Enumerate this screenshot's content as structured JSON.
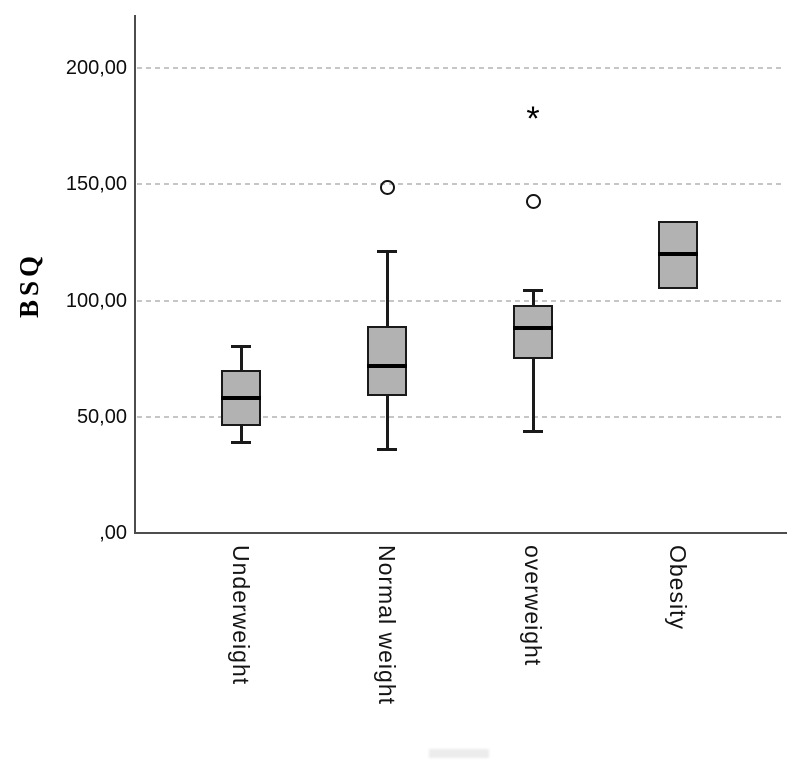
{
  "chart_data": {
    "type": "boxplot",
    "title": "",
    "ylabel": "BSQ",
    "xlabel": "",
    "ylim": [
      0,
      223
    ],
    "grid": "horizontal-dashed-light-gray",
    "legend": "none",
    "yticks": [
      0,
      50,
      100,
      150,
      200
    ],
    "ytick_labels": [
      ",00",
      "50,00",
      "100,00",
      "150,00",
      "200,00"
    ],
    "categories": [
      "Underweight",
      "Normal weight",
      "overweight",
      "Obesity"
    ],
    "series": [
      {
        "category": "Underweight",
        "whisker_low": 39,
        "q1": 46,
        "median": 58,
        "q3": 70,
        "whisker_high": 80,
        "outliers": [],
        "extremes": []
      },
      {
        "category": "Normal weight",
        "whisker_low": 36,
        "q1": 59,
        "median": 72,
        "q3": 89,
        "whisker_high": 121,
        "outliers": [
          149
        ],
        "extremes": []
      },
      {
        "category": "overweight",
        "whisker_low": 44,
        "q1": 75,
        "median": 88,
        "q3": 98,
        "whisker_high": 104,
        "outliers": [
          143
        ],
        "extremes": [
          180
        ]
      },
      {
        "category": "Obesity",
        "whisker_low": 105,
        "q1": 105,
        "median": 120,
        "q3": 134,
        "whisker_high": 134,
        "outliers": [],
        "extremes": []
      }
    ],
    "markers": {
      "outlier": "open-circle",
      "extreme": "asterisk",
      "extreme_glyph": "*"
    },
    "colors": {
      "box_fill": "#b2b2b2",
      "box_border": "#1a1a1a",
      "median": "#000000",
      "whisker": "#1a1a1a",
      "gridline": "#c6c6c6",
      "axis": "#4d4d4d",
      "text": "#000000"
    },
    "notes": {
      "bottom_edge_text": "illegible cropped text fragment at bottom center"
    }
  }
}
